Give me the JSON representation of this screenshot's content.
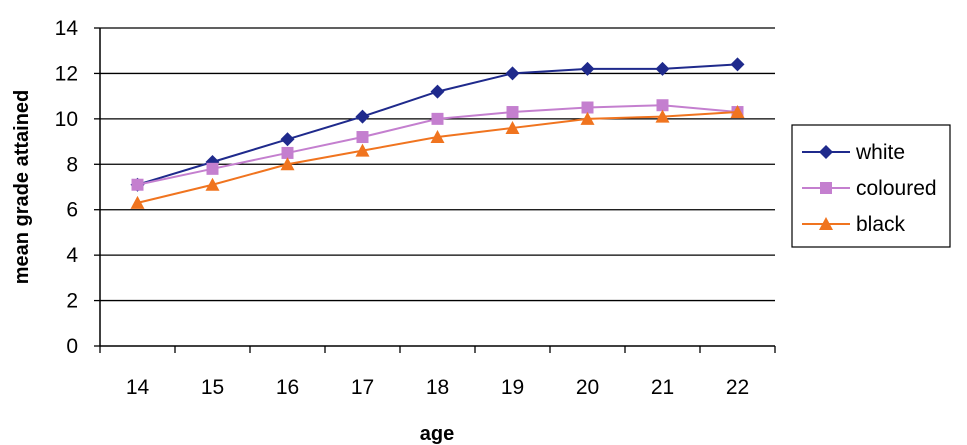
{
  "chart_data": {
    "type": "line",
    "x": [
      14,
      15,
      16,
      17,
      18,
      19,
      20,
      21,
      22
    ],
    "categories": [
      "14",
      "15",
      "16",
      "17",
      "18",
      "19",
      "20",
      "21",
      "22"
    ],
    "series": [
      {
        "name": "white",
        "values": [
          7.1,
          8.1,
          9.1,
          10.1,
          11.2,
          12.0,
          12.2,
          12.2,
          12.4
        ],
        "color": "#1f2a8c",
        "marker": "diamond"
      },
      {
        "name": "coloured",
        "values": [
          7.1,
          7.8,
          8.5,
          9.2,
          10.0,
          10.3,
          10.5,
          10.6,
          10.3
        ],
        "color": "#c47fcf",
        "marker": "square"
      },
      {
        "name": "black",
        "values": [
          6.3,
          7.1,
          8.0,
          8.6,
          9.2,
          9.6,
          10.0,
          10.1,
          10.3
        ],
        "color": "#f0741f",
        "marker": "triangle"
      }
    ],
    "xlabel": "age",
    "ylabel": "mean grade attained",
    "ylim": [
      0,
      14
    ],
    "yticks": [
      "0",
      "2",
      "4",
      "6",
      "8",
      "10",
      "12",
      "14"
    ],
    "grid": true,
    "legend_position": "right"
  }
}
